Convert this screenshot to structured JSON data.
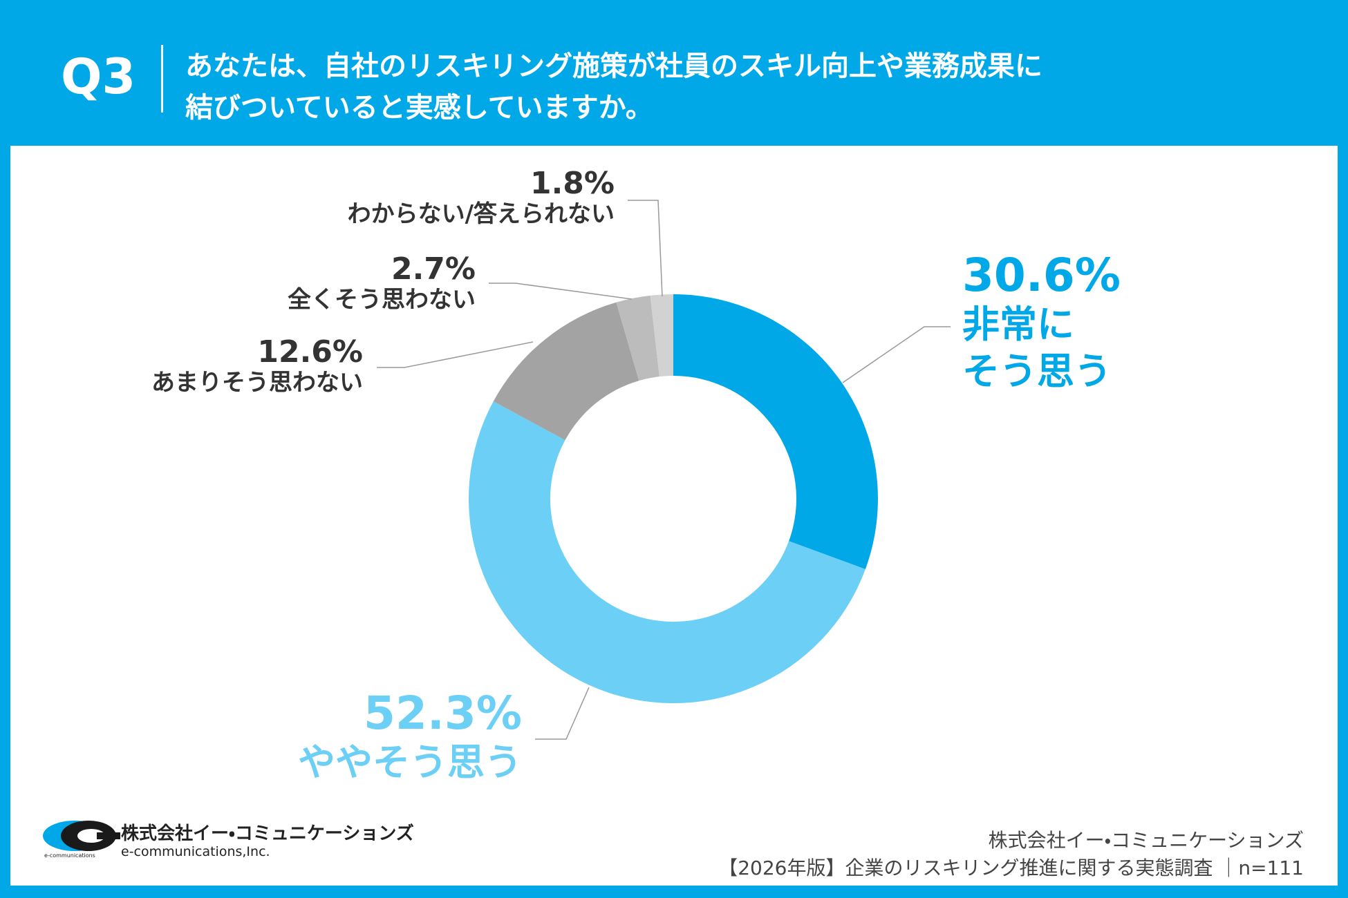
{
  "header": {
    "label": "Q3",
    "title": "あなたは、自社のリスキリング施策が社員のスキル向上や業務成果に\n結びついていると実感していますか。"
  },
  "chart_data": {
    "type": "pie",
    "donut": true,
    "categories": [
      "非常に\nそう思う",
      "ややそう思う",
      "あまりそう思わない",
      "全くそう思わない",
      "わからない/答えられない"
    ],
    "values": [
      30.6,
      52.3,
      12.6,
      2.7,
      1.8
    ],
    "value_labels": [
      "30.6%",
      "52.3%",
      "12.6%",
      "2.7%",
      "1.8%"
    ],
    "colors": [
      "#00a8e8",
      "#6ccff6",
      "#a3a3a3",
      "#bcbcbc",
      "#d2d2d2"
    ]
  },
  "footer": {
    "logo_name": "株式会社イー・コミュニケーションズ",
    "logo_sub": "e-communications,Inc.",
    "logo_mark": "e-communications",
    "source_company": "株式会社イー・コミュニケーションズ",
    "source_survey": "【2026年版】企業のリスキリング推進に関する実態調査 ｜n=111"
  }
}
